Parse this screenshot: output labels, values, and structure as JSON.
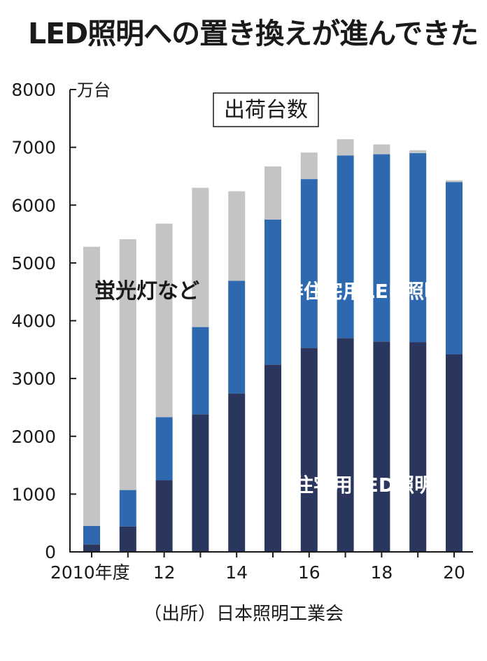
{
  "title": "LED照明への置き換えが進んできた",
  "source": "（出所）日本照明工業会",
  "chart_data": {
    "type": "bar",
    "stacked": true,
    "title": "LED照明への置き換えが進んできた",
    "box_label": "出荷台数",
    "unit": "万台",
    "ylim": [
      0,
      8000
    ],
    "yticks": [
      0,
      1000,
      2000,
      3000,
      4000,
      5000,
      6000,
      7000,
      8000
    ],
    "categories": [
      "2010",
      "2011",
      "2012",
      "2013",
      "2014",
      "2015",
      "2016",
      "2017",
      "2018",
      "2019",
      "2020"
    ],
    "xtick_labels": [
      {
        "index": 0,
        "label": "2010年度"
      },
      {
        "index": 2,
        "label": "12"
      },
      {
        "index": 4,
        "label": "14"
      },
      {
        "index": 6,
        "label": "16"
      },
      {
        "index": 8,
        "label": "18"
      },
      {
        "index": 10,
        "label": "20"
      }
    ],
    "series": [
      {
        "name": "住宅用LED照明",
        "color": "#2b365f",
        "values": [
          130,
          440,
          1240,
          2380,
          2740,
          3240,
          3530,
          3700,
          3640,
          3630,
          3420
        ]
      },
      {
        "name": "非住宅用LED照明",
        "color": "#2e69b0",
        "values": [
          320,
          630,
          1090,
          1510,
          1950,
          2510,
          2920,
          3160,
          3240,
          3270,
          2980
        ]
      },
      {
        "name": "蛍光灯など",
        "color": "#c3c4c6",
        "values": [
          4830,
          4340,
          3350,
          2410,
          1550,
          920,
          460,
          280,
          170,
          50,
          30
        ]
      }
    ],
    "grid": false,
    "legend": "inline labels"
  }
}
